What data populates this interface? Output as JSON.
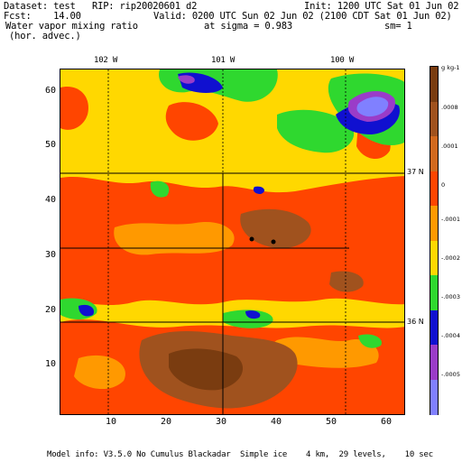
{
  "header": {
    "dataset": "Dataset: test   RIP: rip20020601 d2",
    "init": "Init: 1200 UTC Sat 01 Jun 02",
    "fcst": "Fcst:    14.00",
    "valid": "Valid: 0200 UTC Sun 02 Jun 02 (2100 CDT Sat 01 Jun 02)",
    "field": "Water vapor mixing ratio",
    "sigma": "at sigma = 0.983",
    "sm": "sm= 1",
    "advec": "(hor. advec.)"
  },
  "map": {
    "top_lon_labels": [
      "102 W",
      "101 W",
      "100 W"
    ],
    "bottom_ticks": [
      "10",
      "20",
      "30",
      "40",
      "50",
      "60"
    ],
    "left_ticks": [
      "10",
      "20",
      "30",
      "40",
      "50",
      "60"
    ],
    "lat_labels": [
      "37 N",
      "36 N"
    ]
  },
  "colorbar": {
    "unit": "g kg-1",
    "labels": [
      ".0008",
      ".0001",
      "0",
      "-.0001",
      "-.0002",
      "-.0003",
      "-.0004",
      "-.0005"
    ],
    "colors": [
      "#7a3c10",
      "#a0521e",
      "#d2691e",
      "#ff4500",
      "#ff9900",
      "#ffd800",
      "#2fd82f",
      "#1010d0",
      "#9a3cc8",
      "#8080ff"
    ]
  },
  "footer": {
    "model_info": "Model info: V3.5.0 No Cumulus Blackadar  Simple ice    4 km,  29 levels,    10 sec"
  }
}
